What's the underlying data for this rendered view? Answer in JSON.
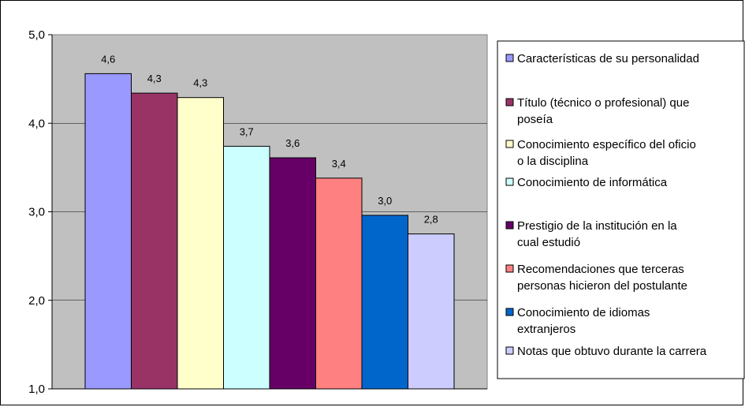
{
  "chart_data": {
    "type": "bar",
    "title": "",
    "xlabel": "",
    "ylabel": "",
    "ylim": [
      1.0,
      5.0
    ],
    "yticks": [
      "1,0",
      "2,0",
      "3,0",
      "4,0",
      "5,0"
    ],
    "grid": true,
    "legend_position": "right",
    "plot_background": "#C0C0C0",
    "series": [
      {
        "name": "Características de su personalidad",
        "value": 4.56,
        "label": "4,6",
        "color": "#9999FF",
        "legend_lines": [
          "Características de su personalidad"
        ]
      },
      {
        "name": "Título (técnico o profesional) que poseía",
        "value": 4.34,
        "label": "4,3",
        "color": "#993366",
        "legend_lines": [
          "Título (técnico o profesional) que",
          "poseía"
        ]
      },
      {
        "name": "Conocimiento específico del oficio o la disciplina",
        "value": 4.29,
        "label": "4,3",
        "color": "#FFFFCC",
        "legend_lines": [
          "Conocimiento específico del oficio",
          "o la disciplina"
        ]
      },
      {
        "name": "Conocimiento de informática",
        "value": 3.74,
        "label": "3,7",
        "color": "#CCFFFF",
        "legend_lines": [
          "Conocimiento de informática"
        ]
      },
      {
        "name": "Prestigio de la institución en la cual estudió",
        "value": 3.61,
        "label": "3,6",
        "color": "#660066",
        "legend_lines": [
          "Prestigio de la institución en la",
          "cual estudió"
        ]
      },
      {
        "name": "Recomendaciones que terceras personas hicieron del postulante",
        "value": 3.38,
        "label": "3,4",
        "color": "#FF8080",
        "legend_lines": [
          "Recomendaciones que terceras",
          "personas hicieron del postulante"
        ]
      },
      {
        "name": "Conocimiento de idiomas extranjeros",
        "value": 2.96,
        "label": "3,0",
        "color": "#0066CC",
        "legend_lines": [
          "Conocimiento de idiomas",
          "extranjeros"
        ]
      },
      {
        "name": "Notas que obtuvo durante la carrera",
        "value": 2.75,
        "label": "2,8",
        "color": "#CCCCFF",
        "legend_lines": [
          "Notas que obtuvo durante la carrera"
        ]
      }
    ]
  }
}
